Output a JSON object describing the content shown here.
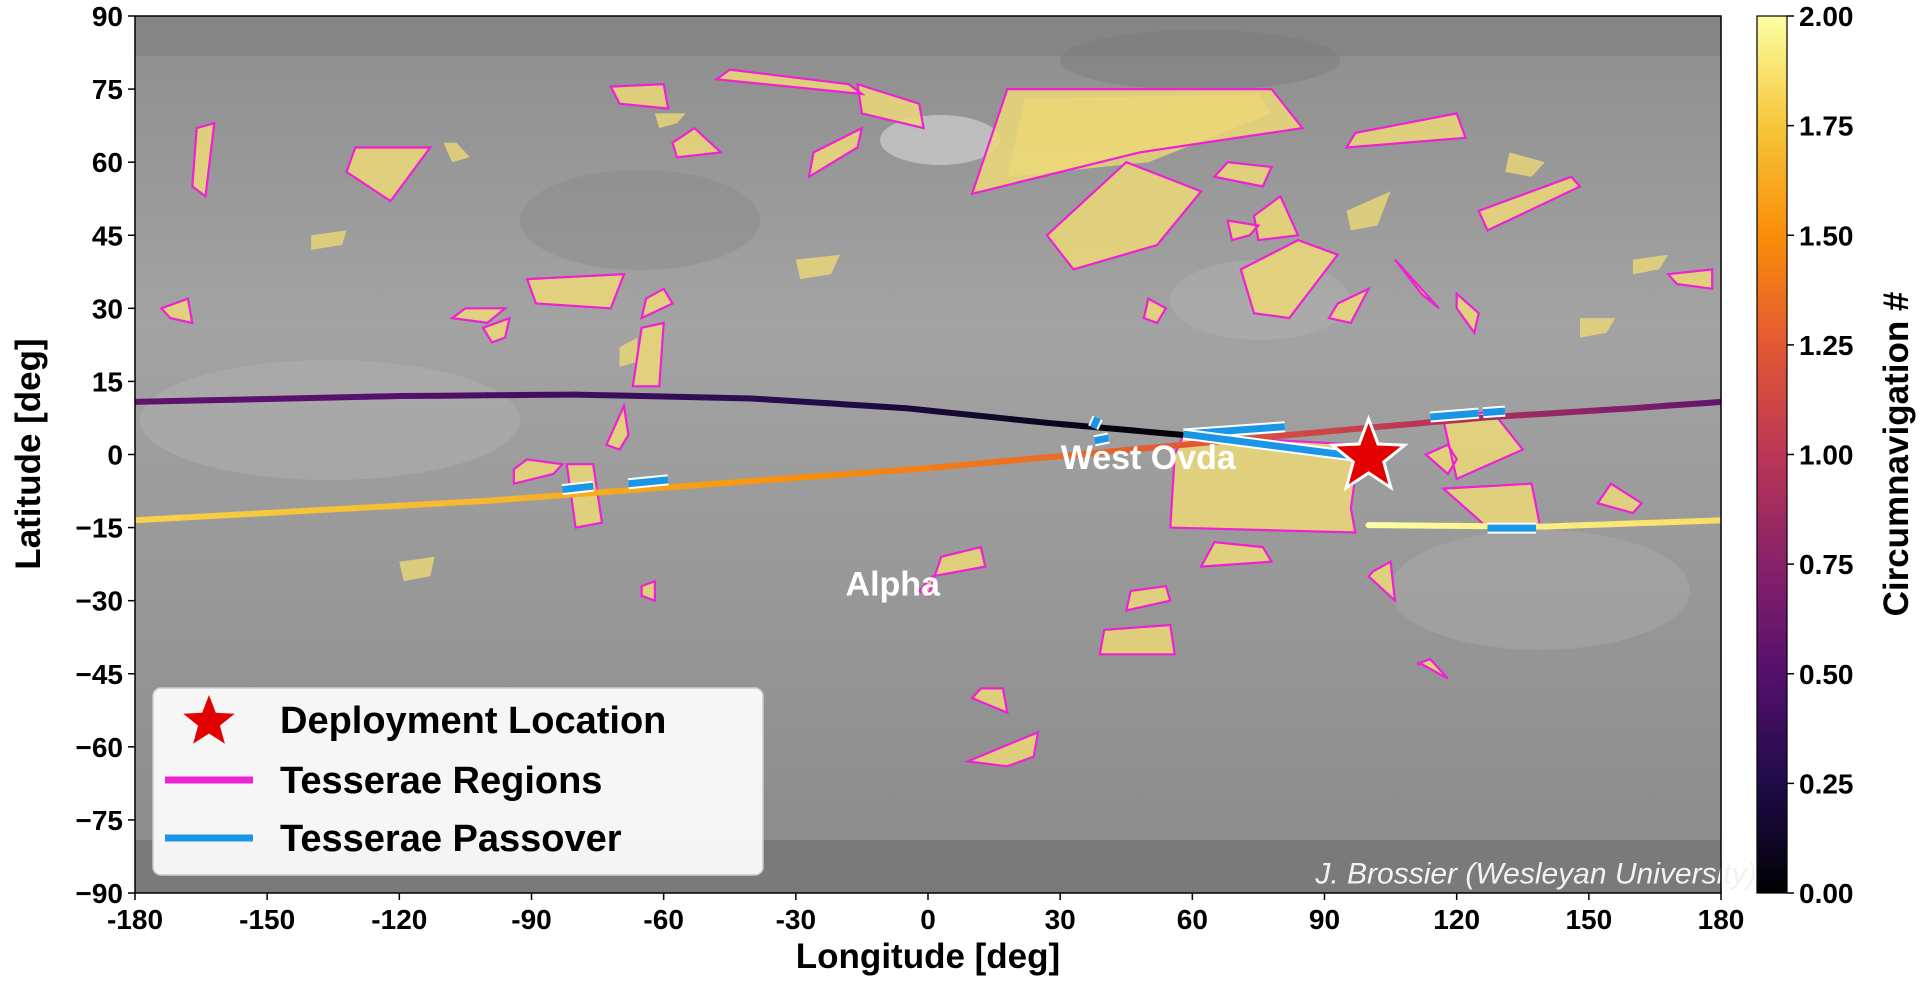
{
  "chart_data": {
    "type": "scatter",
    "title": "",
    "xlabel": "Longitude [deg]",
    "ylabel": "Latitude [deg]",
    "xlim": [
      -180,
      180
    ],
    "ylim": [
      -90,
      90
    ],
    "x_ticks": [
      -180,
      -150,
      -120,
      -90,
      -60,
      -30,
      0,
      30,
      60,
      90,
      120,
      150,
      180
    ],
    "y_ticks": [
      -90,
      -75,
      -60,
      -45,
      -30,
      -15,
      0,
      15,
      30,
      45,
      60,
      75,
      90
    ],
    "x_tick_labels": [
      "-180",
      "-150",
      "-120",
      "-90",
      "-60",
      "-30",
      "0",
      "30",
      "60",
      "90",
      "120",
      "150",
      "180"
    ],
    "y_tick_labels": [
      "−90",
      "−75",
      "−60",
      "−45",
      "−30",
      "−15",
      "0",
      "15",
      "30",
      "45",
      "60",
      "75",
      "90"
    ],
    "grid": false,
    "legend_position": "bottom-left",
    "legend": [
      {
        "label": "Deployment Location",
        "marker": "star",
        "color": "#e30000"
      },
      {
        "label": "Tesserae Regions",
        "marker": "line",
        "color": "#ee22d4"
      },
      {
        "label": "Tesserae Passover",
        "marker": "line",
        "color": "#1996e6"
      }
    ],
    "colorbar": {
      "label": "Circumnavigation #",
      "colormap": "inferno",
      "range": [
        0,
        2
      ],
      "ticks": [
        0,
        0.25,
        0.5,
        0.75,
        1,
        1.25,
        1.5,
        1.75,
        2
      ],
      "tick_labels": [
        "0.00",
        "0.25",
        "0.50",
        "0.75",
        "1.00",
        "1.25",
        "1.50",
        "1.75",
        "2.00"
      ]
    },
    "deployment_location": {
      "lon": 100,
      "lat": -0.5
    },
    "annotations": [
      {
        "text": "West Ovda",
        "lon": 50,
        "lat": -0.5
      },
      {
        "text": "Alpha",
        "lon": -8,
        "lat": -26.5
      },
      {
        "text": "J. Brossier (Wesleyan University)",
        "lon": 138,
        "lat": -86
      }
    ],
    "trajectory": [
      {
        "c": 0.0,
        "lon": 58,
        "lat": 4
      },
      {
        "c": 0.1,
        "lon": 27,
        "lat": 6.5
      },
      {
        "c": 0.2,
        "lon": -5,
        "lat": 9.5
      },
      {
        "c": 0.3,
        "lon": -40,
        "lat": 11.5
      },
      {
        "c": 0.4,
        "lon": -80,
        "lat": 12.3
      },
      {
        "c": 0.5,
        "lon": -120,
        "lat": 12
      },
      {
        "c": 0.55,
        "lon": -180,
        "lat": 10.8
      },
      {
        "c": 0.55,
        "lon": 180,
        "lat": 10.8
      },
      {
        "c": 0.7,
        "lon": 160,
        "lat": 9.5
      },
      {
        "c": 0.9,
        "lon": 128,
        "lat": 7.7
      },
      {
        "c": 1.05,
        "lon": 100,
        "lat": 5.5
      },
      {
        "c": 1.2,
        "lon": 70,
        "lat": 3
      },
      {
        "c": 1.3,
        "lon": 40,
        "lat": 0.5
      },
      {
        "c": 1.42,
        "lon": 0,
        "lat": -2.8
      },
      {
        "c": 1.55,
        "lon": -45,
        "lat": -5.8
      },
      {
        "c": 1.68,
        "lon": -100,
        "lat": -9.5
      },
      {
        "c": 1.8,
        "lon": -180,
        "lat": -13.5
      },
      {
        "c": 1.85,
        "lon": 180,
        "lat": -13.5
      },
      {
        "c": 1.92,
        "lon": 140,
        "lat": -14.8
      },
      {
        "c": 2.0,
        "lon": 100,
        "lat": -14.5
      }
    ],
    "tesserae_passover": [
      [
        [
          58,
          4.2
        ],
        [
          81,
          5.7
        ]
      ],
      [
        [
          58,
          4.2
        ],
        [
          99,
          -0.6
        ]
      ],
      [
        [
          37.5,
          5.5
        ],
        [
          38.5,
          7.5
        ]
      ],
      [
        [
          37.8,
          2.8
        ],
        [
          41,
          3.4
        ]
      ],
      [
        [
          114,
          7.7
        ],
        [
          125,
          8.5
        ]
      ],
      [
        [
          126,
          8.6
        ],
        [
          131,
          8.9
        ]
      ],
      [
        [
          -83,
          -7.2
        ],
        [
          -76,
          -6.5
        ]
      ],
      [
        [
          -68,
          -6
        ],
        [
          -59,
          -5.2
        ]
      ],
      [
        [
          127,
          -15.1
        ],
        [
          138,
          -15.1
        ]
      ]
    ],
    "tesserae_regions": [
      [
        [
          10,
          53.5
        ],
        [
          18,
          75
        ],
        [
          78,
          75
        ],
        [
          85,
          67
        ],
        [
          48,
          62
        ],
        [
          10,
          53.5
        ]
      ],
      [
        [
          -48,
          77
        ],
        [
          -15,
          74
        ],
        [
          -18,
          76
        ],
        [
          -45,
          79
        ]
      ],
      [
        [
          -72,
          75.5
        ],
        [
          -60,
          76
        ],
        [
          -59,
          71
        ],
        [
          -70,
          72
        ]
      ],
      [
        [
          -16,
          76
        ],
        [
          -2,
          72
        ],
        [
          -1,
          67
        ],
        [
          -15,
          70
        ]
      ],
      [
        [
          -57,
          61
        ],
        [
          -47,
          62
        ],
        [
          -53,
          67
        ],
        [
          -58,
          64
        ]
      ],
      [
        [
          -27,
          57
        ],
        [
          -16,
          63
        ],
        [
          -15,
          67
        ],
        [
          -26,
          62
        ]
      ],
      [
        [
          -130,
          63
        ],
        [
          -113,
          63
        ],
        [
          -122,
          52
        ],
        [
          -132,
          58
        ]
      ],
      [
        [
          -166,
          67
        ],
        [
          -162,
          68
        ],
        [
          -164,
          53
        ],
        [
          -167,
          55
        ]
      ],
      [
        [
          27,
          45
        ],
        [
          45,
          60
        ],
        [
          62,
          54
        ],
        [
          52,
          43
        ],
        [
          33,
          38
        ]
      ],
      [
        [
          68,
          60
        ],
        [
          78,
          59
        ],
        [
          76,
          55
        ],
        [
          65,
          57
        ]
      ],
      [
        [
          74,
          49
        ],
        [
          80,
          53
        ],
        [
          84,
          45
        ],
        [
          75,
          44
        ]
      ],
      [
        [
          68,
          48
        ],
        [
          75,
          47
        ],
        [
          73,
          45
        ],
        [
          69,
          44
        ]
      ],
      [
        [
          71,
          38
        ],
        [
          84,
          44
        ],
        [
          93,
          41
        ],
        [
          82,
          28
        ],
        [
          74,
          29
        ]
      ],
      [
        [
          95,
          63
        ],
        [
          122,
          65
        ],
        [
          120,
          70
        ],
        [
          97,
          66
        ]
      ],
      [
        [
          127,
          46
        ],
        [
          148,
          55
        ],
        [
          146,
          57
        ],
        [
          125,
          50
        ]
      ],
      [
        [
          106,
          40
        ],
        [
          112,
          33
        ],
        [
          116,
          30
        ],
        [
          110,
          36
        ]
      ],
      [
        [
          120,
          33
        ],
        [
          125,
          29
        ],
        [
          124,
          25
        ],
        [
          120,
          30
        ]
      ],
      [
        [
          -105,
          30
        ],
        [
          -96,
          30
        ],
        [
          -100,
          27
        ],
        [
          -108,
          28
        ]
      ],
      [
        [
          -91,
          36
        ],
        [
          -69,
          37
        ],
        [
          -72,
          30
        ],
        [
          -89,
          31
        ]
      ],
      [
        [
          -101,
          26
        ],
        [
          -95,
          28
        ],
        [
          -96,
          24
        ],
        [
          -99,
          23
        ]
      ],
      [
        [
          -174,
          30
        ],
        [
          -168,
          32
        ],
        [
          -167,
          27
        ],
        [
          -172,
          28
        ]
      ],
      [
        [
          -65,
          28
        ],
        [
          -58,
          31
        ],
        [
          -60,
          34
        ],
        [
          -64,
          32
        ]
      ],
      [
        [
          -67,
          14
        ],
        [
          -61,
          14
        ],
        [
          -60,
          27
        ],
        [
          -65,
          26
        ]
      ],
      [
        [
          93,
          31
        ],
        [
          100,
          34
        ],
        [
          96,
          27
        ],
        [
          91,
          28
        ]
      ],
      [
        [
          50,
          32
        ],
        [
          54,
          30
        ],
        [
          52,
          27
        ],
        [
          49,
          28
        ]
      ],
      [
        [
          168,
          37
        ],
        [
          178,
          38
        ],
        [
          178,
          34
        ],
        [
          170,
          35
        ]
      ],
      [
        [
          -94,
          -6
        ],
        [
          -85,
          -4
        ],
        [
          -83,
          -2
        ],
        [
          -91,
          -1
        ],
        [
          -94,
          -3
        ]
      ],
      [
        [
          -73,
          2
        ],
        [
          -69,
          10
        ],
        [
          -68,
          4
        ],
        [
          -70,
          1
        ]
      ],
      [
        [
          -82,
          -2
        ],
        [
          -76,
          -2
        ],
        [
          -74,
          -14
        ],
        [
          -80,
          -15
        ]
      ],
      [
        [
          56,
          0
        ],
        [
          58,
          4
        ],
        [
          98,
          2
        ],
        [
          96,
          -11
        ],
        [
          97,
          -16
        ],
        [
          55,
          -15
        ]
      ],
      [
        [
          113,
          0
        ],
        [
          118,
          -4
        ],
        [
          120,
          -1
        ],
        [
          118,
          2
        ]
      ],
      [
        [
          117,
          7
        ],
        [
          128,
          9
        ],
        [
          135,
          1
        ],
        [
          120,
          -5
        ]
      ],
      [
        [
          117,
          -7
        ],
        [
          127,
          -15
        ],
        [
          139,
          -15
        ],
        [
          137,
          -6
        ]
      ],
      [
        [
          155,
          -6
        ],
        [
          162,
          -10
        ],
        [
          160,
          -12
        ],
        [
          152,
          -10
        ]
      ],
      [
        [
          62,
          -23
        ],
        [
          78,
          -22
        ],
        [
          76,
          -19
        ],
        [
          65,
          -18
        ]
      ],
      [
        [
          45,
          -32
        ],
        [
          55,
          -30
        ],
        [
          54,
          -27
        ],
        [
          46,
          -28
        ]
      ],
      [
        [
          39,
          -41
        ],
        [
          56,
          -41
        ],
        [
          55,
          -35
        ],
        [
          40,
          -36
        ]
      ],
      [
        [
          1,
          -25
        ],
        [
          13,
          -23
        ],
        [
          12,
          -19
        ],
        [
          3,
          -21
        ],
        [
          0,
          -29
        ],
        [
          -2,
          -28
        ]
      ],
      [
        [
          9,
          -63
        ],
        [
          25,
          -57
        ],
        [
          24,
          -62
        ],
        [
          18,
          -64
        ]
      ],
      [
        [
          10,
          -50
        ],
        [
          18,
          -53
        ],
        [
          17,
          -48
        ],
        [
          12,
          -48
        ]
      ],
      [
        [
          100,
          -25
        ],
        [
          106,
          -30
        ],
        [
          105,
          -22
        ],
        [
          101,
          -24
        ]
      ],
      [
        [
          112,
          -43
        ],
        [
          118,
          -46
        ],
        [
          114,
          -42
        ],
        [
          111,
          -43
        ]
      ],
      [
        [
          -65,
          -27
        ],
        [
          -62,
          -26
        ],
        [
          -62,
          -30
        ],
        [
          -65,
          -29
        ]
      ]
    ],
    "tesserae_fill_patches": [
      [
        [
          18,
          57
        ],
        [
          50,
          60
        ],
        [
          78,
          70
        ],
        [
          75,
          74
        ],
        [
          22,
          73
        ]
      ],
      [
        [
          -110,
          64
        ],
        [
          -108,
          60
        ],
        [
          -104,
          61
        ],
        [
          -107,
          64
        ]
      ],
      [
        [
          -62,
          70
        ],
        [
          -55,
          70
        ],
        [
          -57,
          68
        ],
        [
          -61,
          67
        ]
      ],
      [
        [
          -70,
          22
        ],
        [
          -66,
          24
        ],
        [
          -66,
          19
        ],
        [
          -70,
          18
        ]
      ],
      [
        [
          95,
          50
        ],
        [
          105,
          54
        ],
        [
          102,
          47
        ],
        [
          96,
          46
        ]
      ],
      [
        [
          132,
          62
        ],
        [
          140,
          60
        ],
        [
          137,
          57
        ],
        [
          131,
          58
        ]
      ],
      [
        [
          160,
          40
        ],
        [
          168,
          41
        ],
        [
          166,
          38
        ],
        [
          160,
          37
        ]
      ],
      [
        [
          -120,
          -22
        ],
        [
          -112,
          -21
        ],
        [
          -113,
          -25
        ],
        [
          -119,
          -26
        ]
      ],
      [
        [
          148,
          28
        ],
        [
          156,
          28
        ],
        [
          154,
          25
        ],
        [
          148,
          24
        ]
      ],
      [
        [
          -30,
          40
        ],
        [
          -20,
          41
        ],
        [
          -22,
          37
        ],
        [
          -29,
          36
        ]
      ],
      [
        [
          -140,
          45
        ],
        [
          -132,
          46
        ],
        [
          -133,
          43
        ],
        [
          -140,
          42
        ]
      ]
    ]
  }
}
